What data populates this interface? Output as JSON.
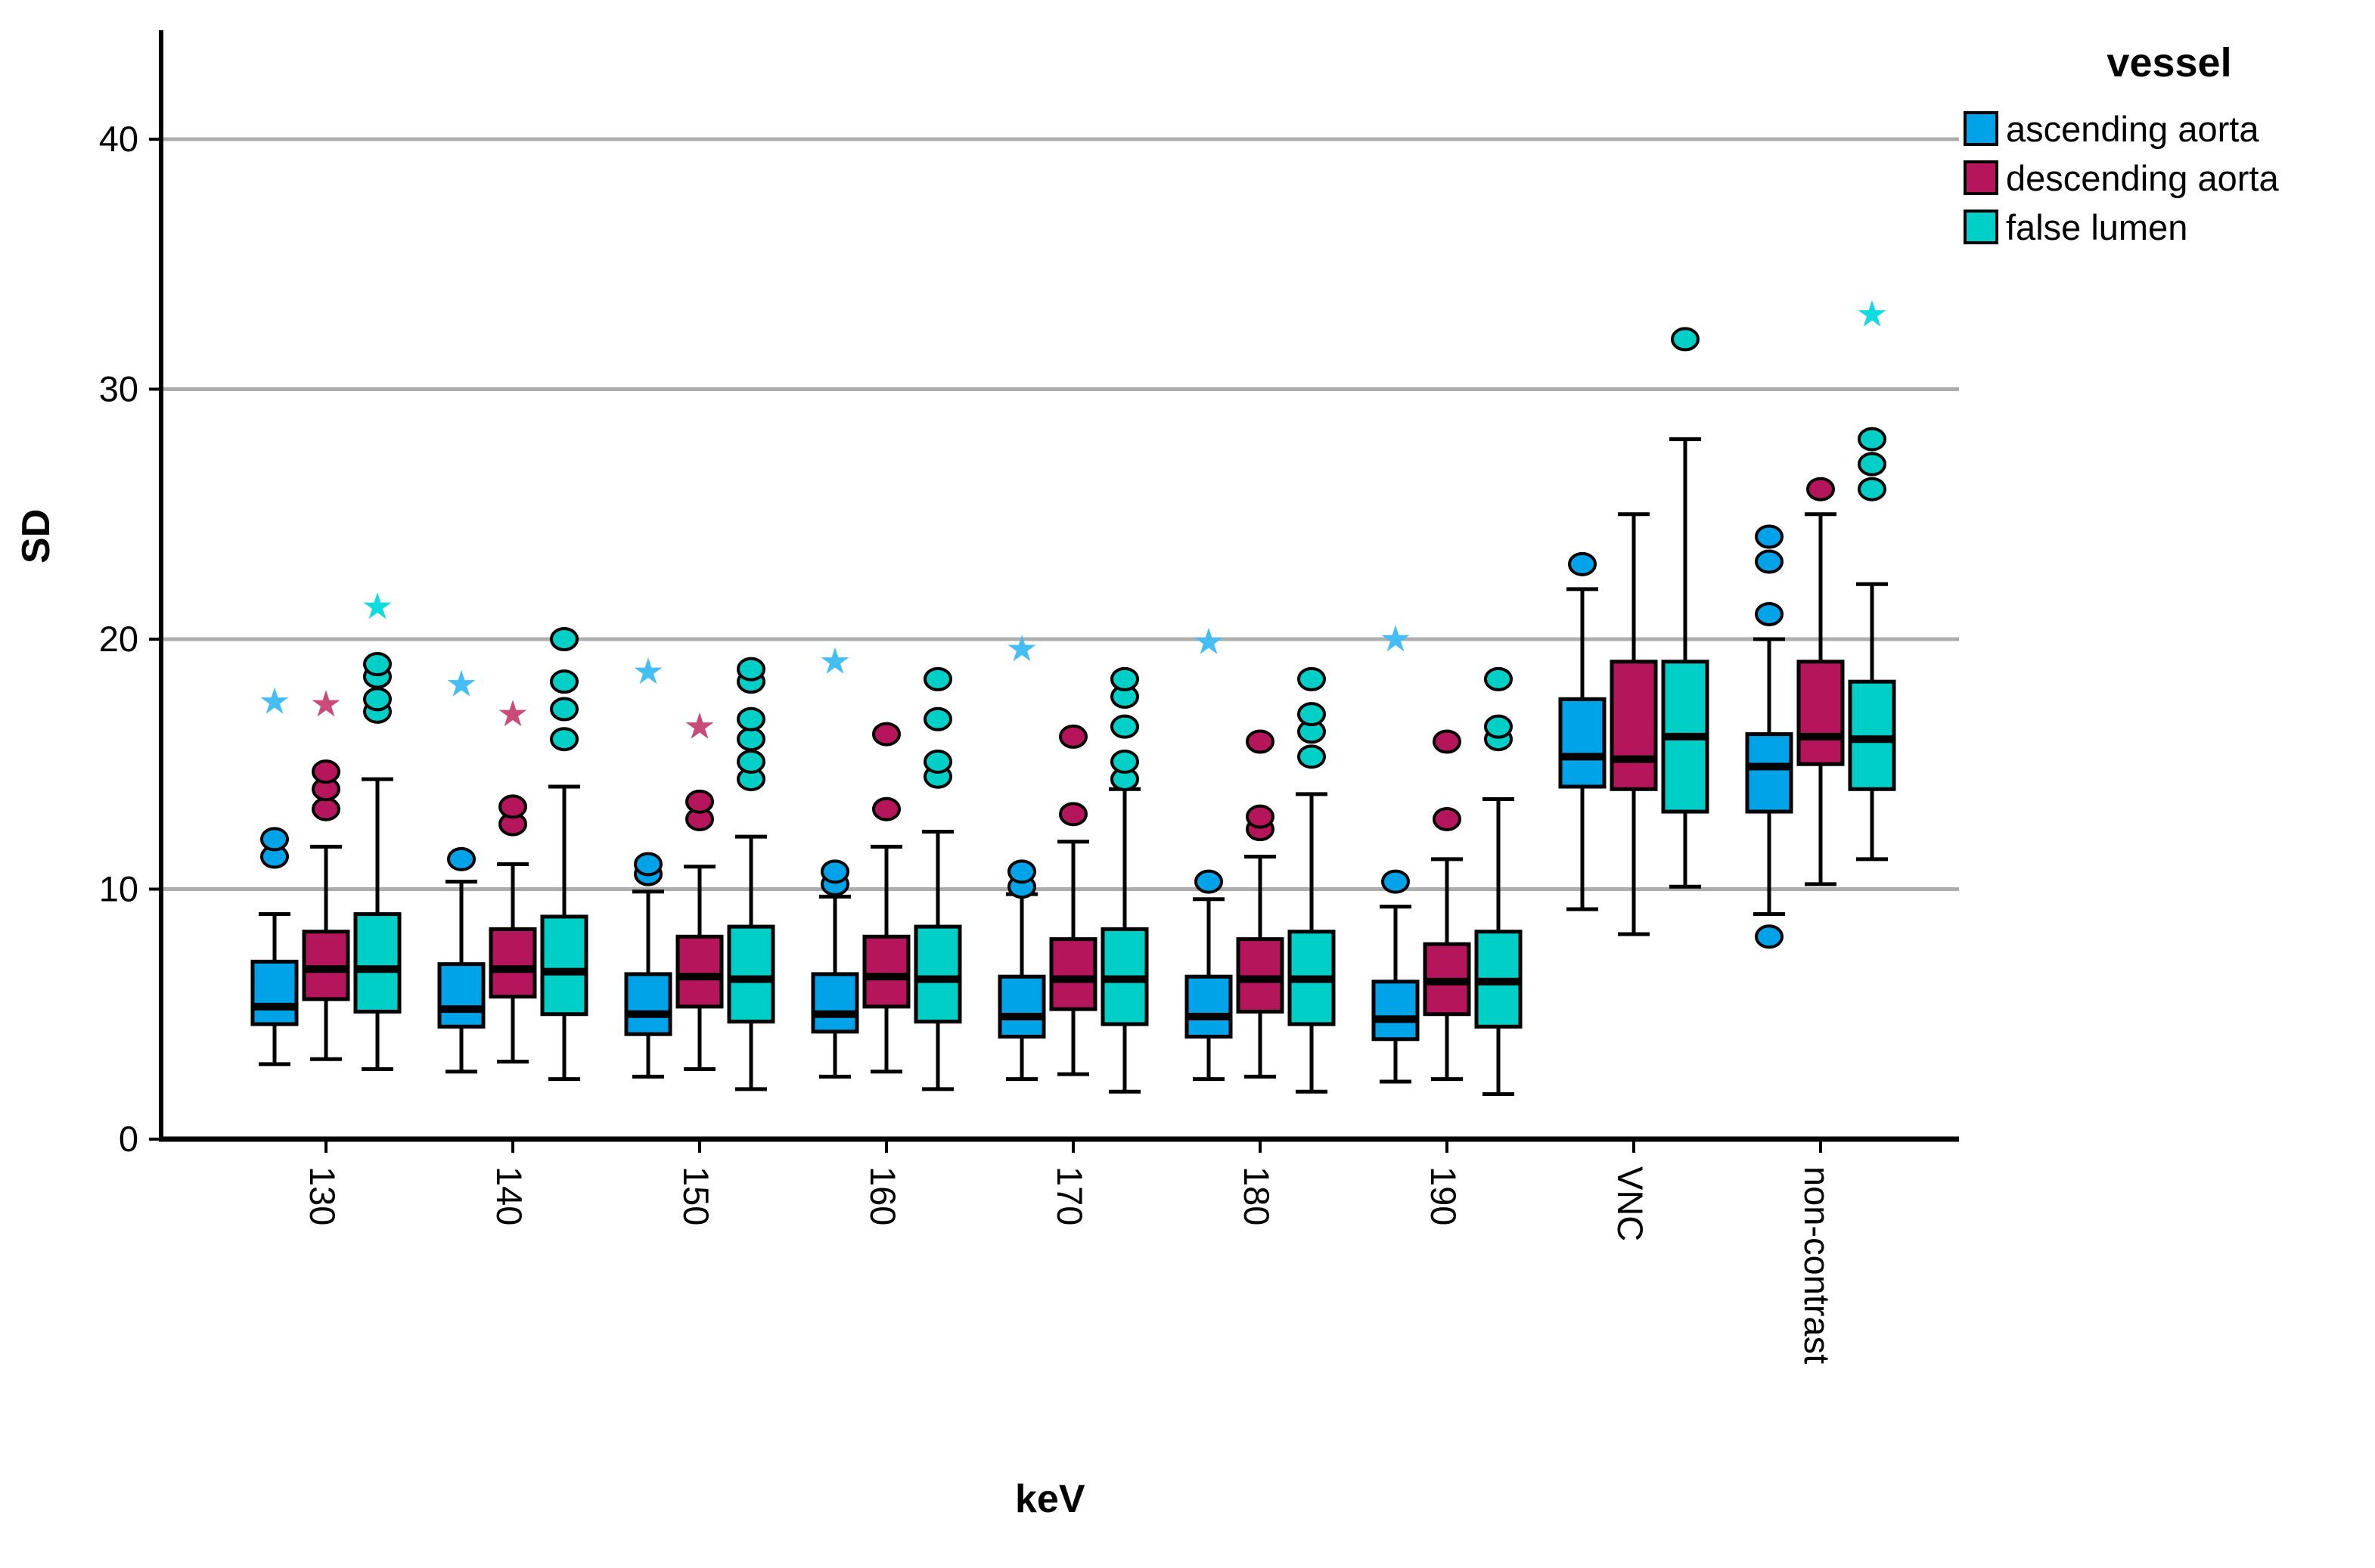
{
  "page": {
    "background": "#ffffff"
  },
  "legend": {
    "title": "vessel"
  },
  "chart_data": {
    "type": "boxplot",
    "title": "",
    "xlabel": "keV",
    "ylabel": "SD",
    "ylim": [
      0,
      44
    ],
    "yticks": [
      0,
      10,
      20,
      30,
      40
    ],
    "grid": "horizontal-gray-lines",
    "legend_position": "top-right",
    "categories": [
      "130",
      "140",
      "150",
      "160",
      "170",
      "180",
      "190",
      "VNC",
      "non-contrast"
    ],
    "series": [
      {
        "name": "ascending aorta",
        "color": "#00A2E8",
        "star_color": "#45BDF5",
        "boxes": [
          {
            "low": 3.0,
            "q1": 4.6,
            "median": 5.3,
            "q3": 7.1,
            "high": 9.0,
            "outliers": [
              11.3,
              12.0
            ],
            "extremes": [
              17.5
            ]
          },
          {
            "low": 2.7,
            "q1": 4.5,
            "median": 5.2,
            "q3": 7.0,
            "high": 10.3,
            "outliers": [
              11.2
            ],
            "extremes": [
              18.2
            ]
          },
          {
            "low": 2.5,
            "q1": 4.2,
            "median": 5.0,
            "q3": 6.6,
            "high": 9.9,
            "outliers": [
              10.6,
              11.0
            ],
            "extremes": [
              18.7
            ]
          },
          {
            "low": 2.5,
            "q1": 4.3,
            "median": 5.0,
            "q3": 6.6,
            "high": 9.7,
            "outliers": [
              10.2,
              10.7
            ],
            "extremes": [
              19.1
            ]
          },
          {
            "low": 2.4,
            "q1": 4.1,
            "median": 4.9,
            "q3": 6.5,
            "high": 9.8,
            "outliers": [
              10.1,
              10.7
            ],
            "extremes": [
              19.6
            ]
          },
          {
            "low": 2.4,
            "q1": 4.1,
            "median": 4.9,
            "q3": 6.5,
            "high": 9.6,
            "outliers": [
              10.3
            ],
            "extremes": [
              19.9
            ]
          },
          {
            "low": 2.3,
            "q1": 4.0,
            "median": 4.8,
            "q3": 6.3,
            "high": 9.3,
            "outliers": [
              10.3
            ],
            "extremes": [
              20.0
            ]
          },
          {
            "low": 9.2,
            "q1": 14.1,
            "median": 15.3,
            "q3": 17.6,
            "high": 22.0,
            "outliers": [
              23.0
            ],
            "extremes": []
          },
          {
            "low": 9.0,
            "q1": 13.1,
            "median": 14.9,
            "q3": 16.2,
            "high": 20.0,
            "outliers": [
              8.1,
              21.0,
              23.1,
              24.1
            ],
            "extremes": []
          }
        ]
      },
      {
        "name": "descending aorta",
        "color": "#B5155B",
        "star_color": "#C84B79",
        "boxes": [
          {
            "low": 3.2,
            "q1": 5.6,
            "median": 6.8,
            "q3": 8.3,
            "high": 11.7,
            "outliers": [
              13.2,
              14.0,
              14.7
            ],
            "extremes": [
              17.4
            ]
          },
          {
            "low": 3.1,
            "q1": 5.7,
            "median": 6.8,
            "q3": 8.4,
            "high": 11.0,
            "outliers": [
              12.6,
              13.3
            ],
            "extremes": [
              17.0
            ]
          },
          {
            "low": 2.8,
            "q1": 5.3,
            "median": 6.5,
            "q3": 8.1,
            "high": 10.9,
            "outliers": [
              12.8,
              13.5
            ],
            "extremes": [
              16.5
            ]
          },
          {
            "low": 2.7,
            "q1": 5.3,
            "median": 6.5,
            "q3": 8.1,
            "high": 11.7,
            "outliers": [
              13.2,
              16.2
            ],
            "extremes": []
          },
          {
            "low": 2.6,
            "q1": 5.2,
            "median": 6.4,
            "q3": 8.0,
            "high": 11.9,
            "outliers": [
              13.0,
              16.1
            ],
            "extremes": []
          },
          {
            "low": 2.5,
            "q1": 5.1,
            "median": 6.4,
            "q3": 8.0,
            "high": 11.3,
            "outliers": [
              12.4,
              12.9,
              15.9
            ],
            "extremes": []
          },
          {
            "low": 2.4,
            "q1": 5.0,
            "median": 6.3,
            "q3": 7.8,
            "high": 11.2,
            "outliers": [
              12.8,
              15.9
            ],
            "extremes": []
          },
          {
            "low": 8.2,
            "q1": 14.0,
            "median": 15.2,
            "q3": 19.1,
            "high": 25.0,
            "outliers": [],
            "extremes": []
          },
          {
            "low": 10.2,
            "q1": 15.0,
            "median": 16.1,
            "q3": 19.1,
            "high": 25.0,
            "outliers": [
              26.0
            ],
            "extremes": []
          }
        ]
      },
      {
        "name": "false lumen",
        "color": "#00CFC8",
        "star_color": "#10DCE0",
        "boxes": [
          {
            "low": 2.8,
            "q1": 5.1,
            "median": 6.8,
            "q3": 9.0,
            "high": 14.4,
            "outliers": [
              17.1,
              17.6,
              18.5,
              19.0
            ],
            "extremes": [
              21.3
            ]
          },
          {
            "low": 2.4,
            "q1": 5.0,
            "median": 6.7,
            "q3": 8.9,
            "high": 14.1,
            "outliers": [
              16.0,
              17.2,
              18.3,
              20.0
            ],
            "extremes": []
          },
          {
            "low": 2.0,
            "q1": 4.7,
            "median": 6.4,
            "q3": 8.5,
            "high": 12.1,
            "outliers": [
              14.4,
              15.1,
              16.0,
              16.8,
              18.3,
              18.8
            ],
            "extremes": []
          },
          {
            "low": 2.0,
            "q1": 4.7,
            "median": 6.4,
            "q3": 8.5,
            "high": 12.3,
            "outliers": [
              14.5,
              15.1,
              16.8,
              18.4
            ],
            "extremes": []
          },
          {
            "low": 1.9,
            "q1": 4.6,
            "median": 6.4,
            "q3": 8.4,
            "high": 14.0,
            "outliers": [
              14.4,
              15.1,
              16.5,
              17.7,
              18.4
            ],
            "extremes": []
          },
          {
            "low": 1.9,
            "q1": 4.6,
            "median": 6.4,
            "q3": 8.3,
            "high": 13.8,
            "outliers": [
              15.3,
              16.3,
              17.0,
              18.4
            ],
            "extremes": []
          },
          {
            "low": 1.8,
            "q1": 4.5,
            "median": 6.3,
            "q3": 8.3,
            "high": 13.6,
            "outliers": [
              16.0,
              16.5,
              18.4
            ],
            "extremes": []
          },
          {
            "low": 10.1,
            "q1": 13.1,
            "median": 16.1,
            "q3": 19.1,
            "high": 28.0,
            "outliers": [
              32.0
            ],
            "extremes": []
          },
          {
            "low": 11.2,
            "q1": 14.0,
            "median": 16.0,
            "q3": 18.3,
            "high": 22.2,
            "outliers": [
              26.0,
              27.0,
              28.0
            ],
            "extremes": [
              33.0
            ]
          }
        ]
      }
    ],
    "style": {
      "gridline_color": "#ADADAD",
      "axis_color": "#000000",
      "text_color": "#000000"
    }
  }
}
